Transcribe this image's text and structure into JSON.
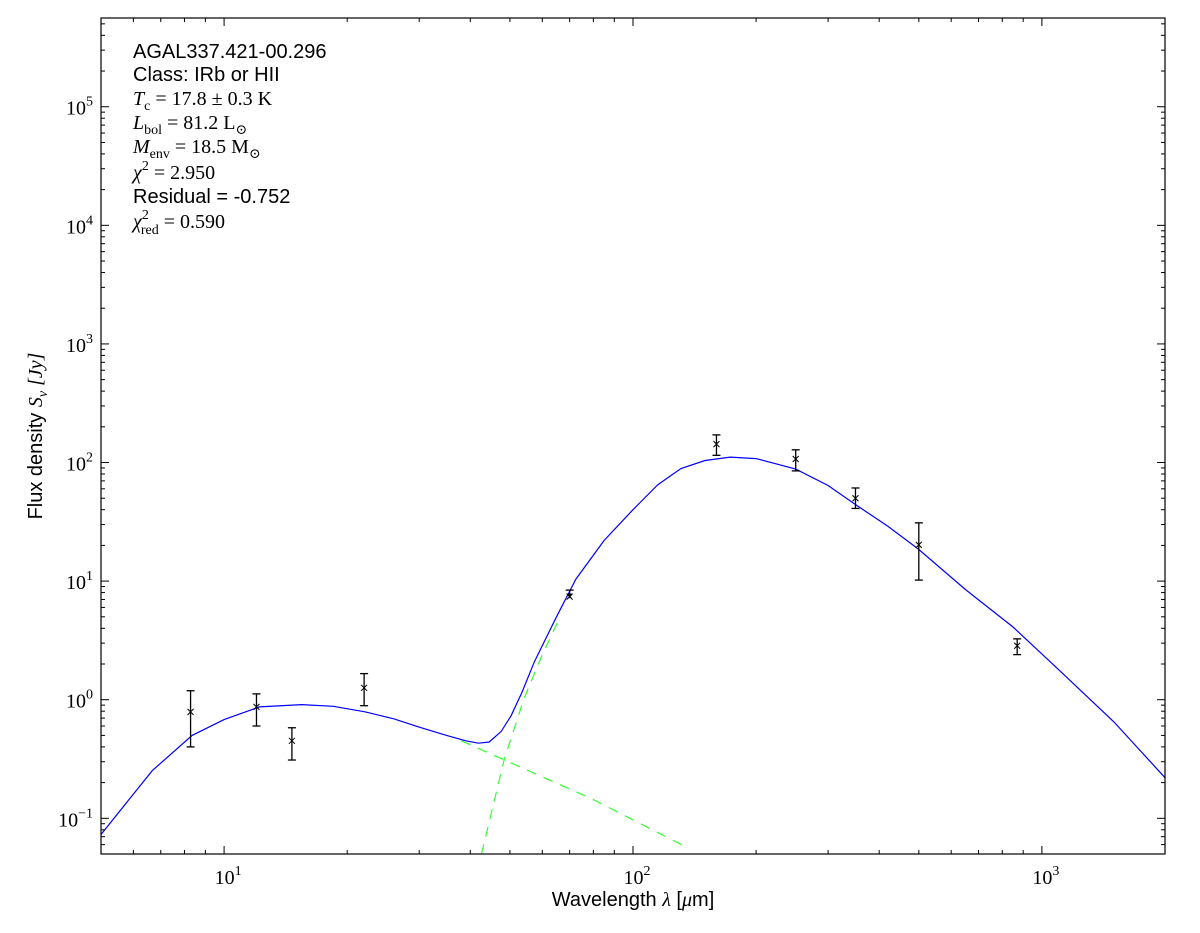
{
  "chart_data": {
    "type": "scatter",
    "title": "",
    "xlabel": "Wavelength λ [μm]",
    "ylabel": "Flux density S_ν [Jy]",
    "xlabel_parts": {
      "pre": "Wavelength ",
      "sym": "λ",
      "post": " [",
      "mu": "μ",
      "unit": "m]"
    },
    "ylabel_parts": {
      "pre": "Flux density ",
      "sym": "S",
      "sub": "ν",
      "unit": " [Jy]"
    },
    "xscale": "log",
    "yscale": "log",
    "xlim": [
      5,
      2000
    ],
    "ylim": [
      0.05,
      560000
    ],
    "grid": false,
    "x_ticks": [
      {
        "value": 10,
        "base": "10",
        "exp": "1"
      },
      {
        "value": 100,
        "base": "10",
        "exp": "2"
      },
      {
        "value": 1000,
        "base": "10",
        "exp": "3"
      }
    ],
    "y_ticks": [
      {
        "value": 0.1,
        "base": "10",
        "exp": "−1"
      },
      {
        "value": 1,
        "base": "10",
        "exp": "0"
      },
      {
        "value": 10,
        "base": "10",
        "exp": "1"
      },
      {
        "value": 100,
        "base": "10",
        "exp": "2"
      },
      {
        "value": 1000,
        "base": "10",
        "exp": "3"
      },
      {
        "value": 10000,
        "base": "10",
        "exp": "4"
      },
      {
        "value": 100000,
        "base": "10",
        "exp": "5"
      }
    ],
    "points": [
      {
        "x": 8.28,
        "y": 0.79,
        "ylo": 0.4,
        "yhi": 1.19,
        "upper_limit": false
      },
      {
        "x": 12,
        "y": 0.87,
        "ylo": 0.6,
        "yhi": 1.12,
        "upper_limit": false
      },
      {
        "x": 14.65,
        "y": 0.45,
        "ylo": 0.31,
        "yhi": 0.58,
        "upper_limit": false
      },
      {
        "x": 22,
        "y": 1.26,
        "ylo": 0.89,
        "yhi": 1.66,
        "upper_limit": false
      },
      {
        "x": 70,
        "y": 7.4,
        "ylo": 7.4,
        "yhi": 8.4,
        "upper_limit": true
      },
      {
        "x": 160,
        "y": 143,
        "ylo": 115,
        "yhi": 171,
        "upper_limit": false
      },
      {
        "x": 250,
        "y": 107,
        "ylo": 85,
        "yhi": 128,
        "upper_limit": false
      },
      {
        "x": 350,
        "y": 50,
        "ylo": 41,
        "yhi": 61,
        "upper_limit": false
      },
      {
        "x": 500,
        "y": 20.2,
        "ylo": 10.2,
        "yhi": 31,
        "upper_limit": false
      },
      {
        "x": 870,
        "y": 2.85,
        "ylo": 2.4,
        "yhi": 3.26,
        "upper_limit": false
      }
    ],
    "model_total": {
      "color": "#0000ff",
      "style": "solid",
      "x": [
        5,
        6.67,
        8.35,
        10,
        12.2,
        15.5,
        18.5,
        22.1,
        26,
        29.9,
        35,
        39,
        41.9,
        44.5,
        47.6,
        50.3,
        53.5,
        57.4,
        65,
        72.5,
        85,
        100,
        115,
        131,
        150,
        173,
        200,
        250,
        300,
        348,
        420,
        498,
        650,
        850,
        1107,
        1500,
        2000
      ],
      "y": [
        0.073,
        0.252,
        0.5,
        0.68,
        0.87,
        0.91,
        0.88,
        0.79,
        0.69,
        0.59,
        0.5,
        0.45,
        0.43,
        0.44,
        0.54,
        0.73,
        1.15,
        2.09,
        5.0,
        10.4,
        22,
        40,
        65,
        89,
        104,
        111,
        108,
        88,
        64,
        44.8,
        29,
        18.7,
        8.5,
        4.1,
        1.75,
        0.65,
        0.22
      ]
    },
    "model_warm": {
      "color": "#33ff33",
      "style": "dashed",
      "x": [
        38,
        79,
        134
      ],
      "y": [
        0.45,
        0.147,
        0.058
      ]
    },
    "model_cold": {
      "color": "#33ff33",
      "style": "dashed",
      "x": [
        42.6,
        48.4,
        54,
        60,
        66
      ],
      "y": [
        0.05,
        0.31,
        1.0,
        2.4,
        4.8
      ]
    },
    "annotations": [
      {
        "kind": "text",
        "text": "AGAL337.421-00.296"
      },
      {
        "kind": "text",
        "text": "Class: IRb or HII"
      },
      {
        "kind": "math",
        "sym": "T",
        "sub": "c",
        "rest": " = 17.8 ± 0.3 K"
      },
      {
        "kind": "math",
        "sym": "L",
        "sub": "bol",
        "rest": " = 81.2 L",
        "rest_sub": "⊙"
      },
      {
        "kind": "math",
        "sym": "M",
        "sub": "env",
        "rest": " = 18.5 M",
        "rest_sub": "⊙"
      },
      {
        "kind": "math",
        "sym": "χ",
        "sup": "2",
        "rest": " = 2.950"
      },
      {
        "kind": "text",
        "text": "Residual = -0.752"
      },
      {
        "kind": "math",
        "sym": "χ",
        "sup": "2",
        "sub": "red",
        "rest": " = 0.590"
      }
    ]
  }
}
